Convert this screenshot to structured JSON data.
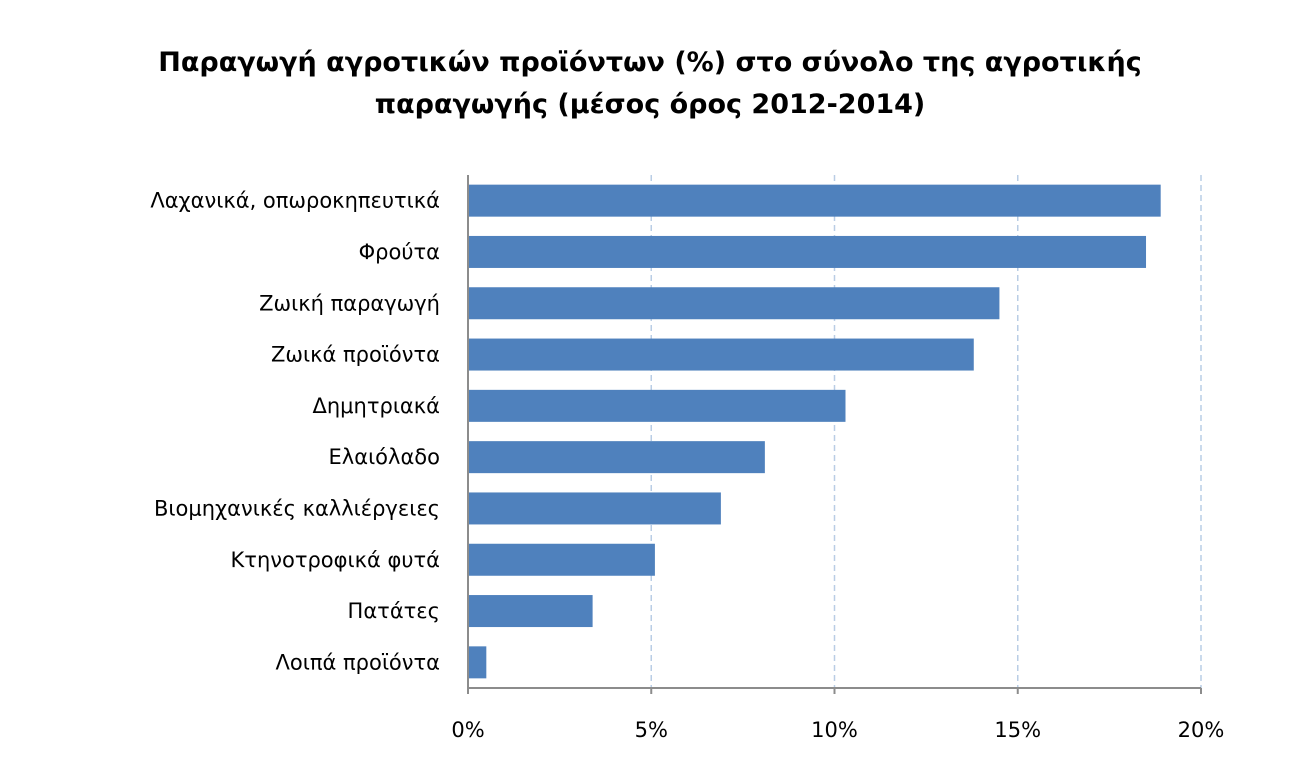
{
  "chart_data": {
    "type": "bar",
    "orientation": "horizontal",
    "title_line1": "Παραγωγή αγροτικών προϊόντων (%) στο σύνολο της αγροτικής",
    "title_line2": "παραγωγής (μέσος όρος 2012-2014)",
    "xlabel": "",
    "ylabel": "",
    "categories": [
      "Λαχανικά, οπωροκηπευτικά",
      "Φρούτα",
      "Ζωική παραγωγή",
      "Ζωικά προϊόντα",
      "Δημητριακά",
      "Ελαιόλαδο",
      "Βιομηχανικές καλλιέργειες",
      "Κτηνοτροφικά φυτά",
      "Πατάτες",
      "Λοιπά προϊόντα"
    ],
    "values": [
      18.9,
      18.5,
      14.5,
      13.8,
      10.3,
      8.1,
      6.9,
      5.1,
      3.4,
      0.5
    ],
    "xlim": [
      0,
      20
    ],
    "ticks": [
      0,
      5,
      10,
      15,
      20
    ],
    "tick_labels": [
      "0%",
      "5%",
      "10%",
      "15%",
      "20%"
    ],
    "bar_color": "#4f81bd",
    "gridlines": "vertical dashed",
    "legend": "none"
  }
}
